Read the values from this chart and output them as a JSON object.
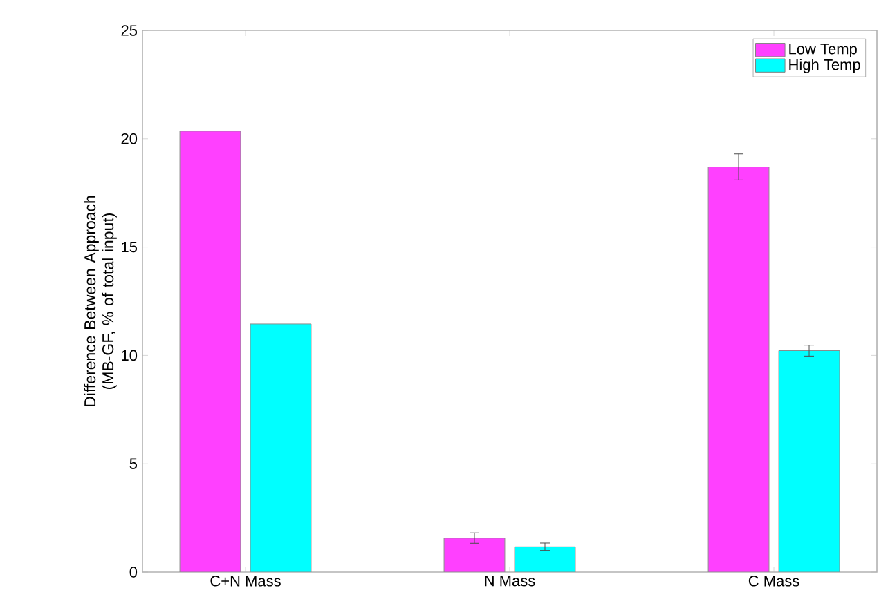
{
  "chart_data": {
    "type": "bar",
    "ylabel": "Difference Between Approach (MB-GF, % of total input)",
    "categories": [
      "C+N Mass",
      "N Mass",
      "C Mass"
    ],
    "series": [
      {
        "name": "Low Temp",
        "color": "#ff40ff",
        "values": [
          20.35,
          1.57,
          18.7
        ],
        "errors": [
          null,
          0.24,
          0.6
        ]
      },
      {
        "name": "High Temp",
        "color": "#00ffff",
        "values": [
          11.45,
          1.17,
          10.22
        ],
        "errors": [
          null,
          0.17,
          0.25
        ]
      }
    ],
    "ylim": [
      0,
      25
    ],
    "yticks": [
      0,
      5,
      10,
      15,
      20,
      25
    ],
    "legend": "top right"
  }
}
